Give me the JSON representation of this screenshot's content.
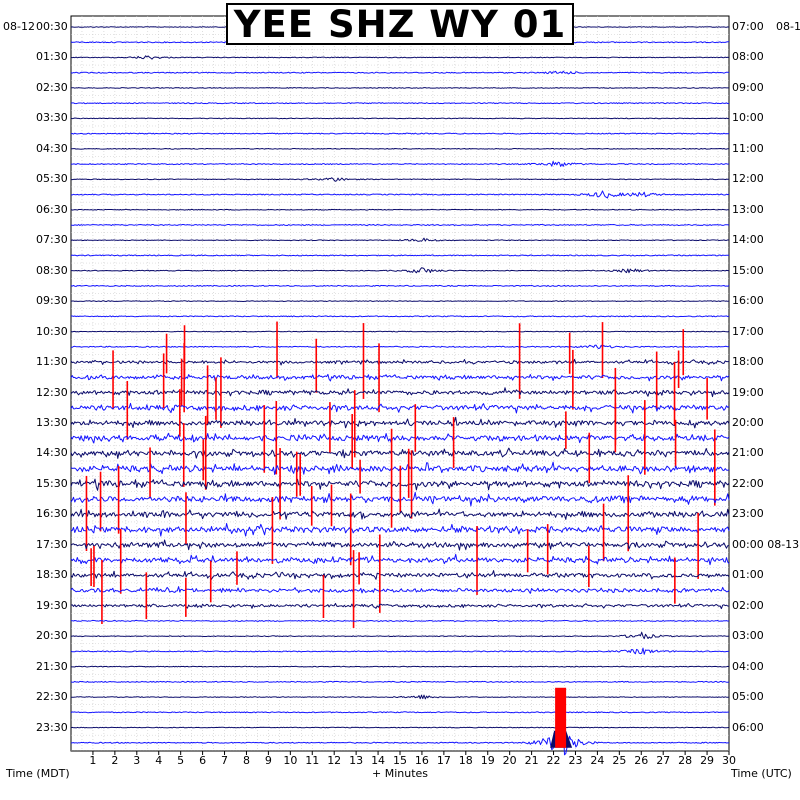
{
  "title": "YEE SHZ WY 01",
  "left_date": "08-12",
  "right_date": "08-1",
  "xlabel": "+ Minutes",
  "left_axis_label": "Time (MDT)",
  "right_axis_label": "Time (UTC)",
  "colors": {
    "trace_navy": "#0b0b6b",
    "trace_blue": "#1414ff",
    "clip_red": "#ff0000",
    "grid": "#c8c8c8",
    "frame": "#000000"
  },
  "chart_data": {
    "type": "line",
    "title": "YEE SHZ WY 01",
    "xlabel": "+ Minutes",
    "left_ylabel": "Time (MDT)",
    "right_ylabel": "Time (UTC)",
    "xlim": [
      0,
      30
    ],
    "x_ticks": [
      "1",
      "2",
      "3",
      "4",
      "5",
      "6",
      "7",
      "8",
      "9",
      "10",
      "11",
      "12",
      "13",
      "14",
      "15",
      "16",
      "17",
      "18",
      "19",
      "20",
      "21",
      "22",
      "23",
      "24",
      "25",
      "26",
      "27",
      "28",
      "29",
      "30"
    ],
    "rows_per_hour": 2,
    "row_count": 48,
    "left_ticks": [
      "00:30",
      "01:30",
      "02:30",
      "03:30",
      "04:30",
      "05:30",
      "06:30",
      "07:30",
      "08:30",
      "09:30",
      "10:30",
      "11:30",
      "12:30",
      "13:30",
      "14:30",
      "15:30",
      "16:30",
      "17:30",
      "18:30",
      "19:30",
      "20:30",
      "21:30",
      "22:30",
      "23:30"
    ],
    "right_ticks": [
      "07:00",
      "08:00",
      "09:00",
      "10:00",
      "11:00",
      "12:00",
      "13:00",
      "14:00",
      "15:00",
      "16:00",
      "17:00",
      "18:00",
      "19:00",
      "20:00",
      "21:00",
      "22:00",
      "23:00",
      "00:00 08-13",
      "01:00",
      "02:00",
      "03:00",
      "04:00",
      "05:00",
      "06:00"
    ],
    "trace_colors": [
      "#0b0b6b",
      "#1414ff"
    ],
    "grid": true,
    "events": [
      {
        "row": 2,
        "minute": 3.5,
        "amplitude": 0.35
      },
      {
        "row": 3,
        "minute": 22.4,
        "amplitude": 0.3
      },
      {
        "row": 9,
        "minute": 22.2,
        "amplitude": 0.6
      },
      {
        "row": 10,
        "minute": 12.0,
        "amplitude": 0.4
      },
      {
        "row": 11,
        "minute": 24.3,
        "amplitude": 0.7
      },
      {
        "row": 11,
        "minute": 26.0,
        "amplitude": 0.45
      },
      {
        "row": 14,
        "minute": 16.0,
        "amplitude": 0.35
      },
      {
        "row": 16,
        "minute": 16.0,
        "amplitude": 0.6
      },
      {
        "row": 16,
        "minute": 25.5,
        "amplitude": 0.4
      },
      {
        "row": 21,
        "minute": 24.0,
        "amplitude": 0.4
      },
      {
        "row": 40,
        "minute": 26.0,
        "amplitude": 0.7
      },
      {
        "row": 41,
        "minute": 26.0,
        "amplitude": 0.6
      },
      {
        "row": 44,
        "minute": 16.0,
        "amplitude": 0.4
      },
      {
        "row": 47,
        "minute": 22.3,
        "amplitude": 3.5
      }
    ],
    "active_rows": {
      "start": 22,
      "end": 38,
      "max_amplitude": 2.6
    }
  }
}
